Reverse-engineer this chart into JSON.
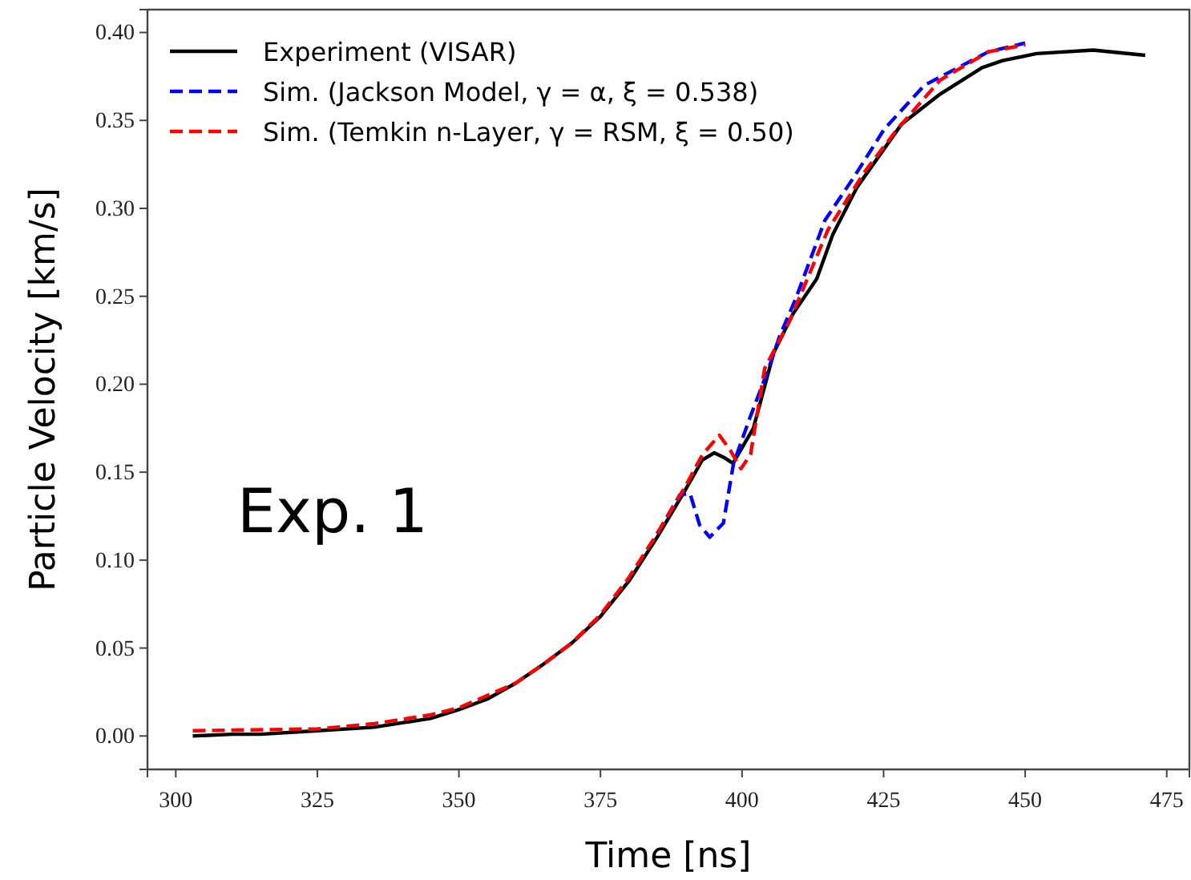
{
  "chart_data": {
    "type": "line",
    "xlabel": "Time [ns]",
    "ylabel": "Particle Velocity [km/s]",
    "xlim": [
      295,
      479
    ],
    "ylim": [
      -0.019,
      0.413
    ],
    "xticks": [
      {
        "value": 300,
        "label": "300"
      },
      {
        "value": 325,
        "label": "325"
      },
      {
        "value": 350,
        "label": "350"
      },
      {
        "value": 375,
        "label": "375"
      },
      {
        "value": 400,
        "label": "400"
      },
      {
        "value": 425,
        "label": "425"
      },
      {
        "value": 450,
        "label": "450"
      },
      {
        "value": 475,
        "label": "475"
      }
    ],
    "yticks": [
      {
        "value": 0,
        "label": "0.00"
      },
      {
        "value": 0.05,
        "label": "0.05"
      },
      {
        "value": 0.1,
        "label": "0.10"
      },
      {
        "value": 0.15,
        "label": "0.15"
      },
      {
        "value": 0.2,
        "label": "0.20"
      },
      {
        "value": 0.25,
        "label": "0.25"
      },
      {
        "value": 0.3,
        "label": "0.30"
      },
      {
        "value": 0.35,
        "label": "0.35"
      },
      {
        "value": 0.4,
        "label": "0.40"
      }
    ],
    "grid": false,
    "legend": "top left",
    "marker": "none",
    "annotations": [
      "Exp. 1"
    ],
    "series": [
      {
        "name": "Experiment (VISAR)",
        "color": "#000000",
        "line_style": "solid",
        "x": [
          303,
          310,
          315,
          325,
          335,
          345,
          350,
          355,
          360,
          365,
          370,
          375,
          380,
          385,
          390,
          393,
          395.1,
          397,
          398.4,
          402,
          405.6,
          409,
          413.2,
          416,
          420.3,
          428.2,
          435,
          442.4,
          446,
          452,
          462,
          471.2
        ],
        "values": [
          0.0,
          0.001,
          0.001,
          0.003,
          0.005,
          0.01,
          0.015,
          0.021,
          0.03,
          0.041,
          0.053,
          0.068,
          0.088,
          0.113,
          0.14,
          0.157,
          0.161,
          0.158,
          0.155,
          0.175,
          0.218,
          0.24,
          0.26,
          0.285,
          0.312,
          0.348,
          0.365,
          0.38,
          0.384,
          0.388,
          0.39,
          0.387
        ]
      },
      {
        "name": "Sim. (Jackson Model, γ = α, ξ = 0.538)",
        "color": "#0000ff",
        "line_style": "dashed",
        "x": [
          385,
          389,
          390.8,
          392.5,
          394.3,
          396.7,
          398.5,
          401.4,
          404.7,
          406.6,
          409.4,
          414.6,
          419.8,
          425.1,
          432.2,
          443.5,
          450
        ],
        "values": [
          0.115,
          0.137,
          0.138,
          0.12,
          0.113,
          0.121,
          0.155,
          0.181,
          0.209,
          0.227,
          0.248,
          0.293,
          0.318,
          0.345,
          0.37,
          0.389,
          0.394
        ]
      },
      {
        "name": "Sim. (Temkin n-Layer, γ = RSM, ξ = 0.50)",
        "color": "#ff0000",
        "line_style": "dashed",
        "x": [
          303,
          325,
          335,
          345,
          350,
          360,
          365,
          370,
          375,
          380,
          385,
          390,
          393,
          396,
          398,
          399.8,
          401.5,
          404,
          408.4,
          415.2,
          421.7,
          427.4,
          435,
          443.5,
          450
        ],
        "values": [
          0.003,
          0.004,
          0.007,
          0.012,
          0.016,
          0.03,
          0.041,
          0.053,
          0.069,
          0.09,
          0.115,
          0.142,
          0.16,
          0.171,
          0.162,
          0.152,
          0.16,
          0.209,
          0.236,
          0.288,
          0.321,
          0.345,
          0.373,
          0.389,
          0.393
        ]
      }
    ]
  }
}
